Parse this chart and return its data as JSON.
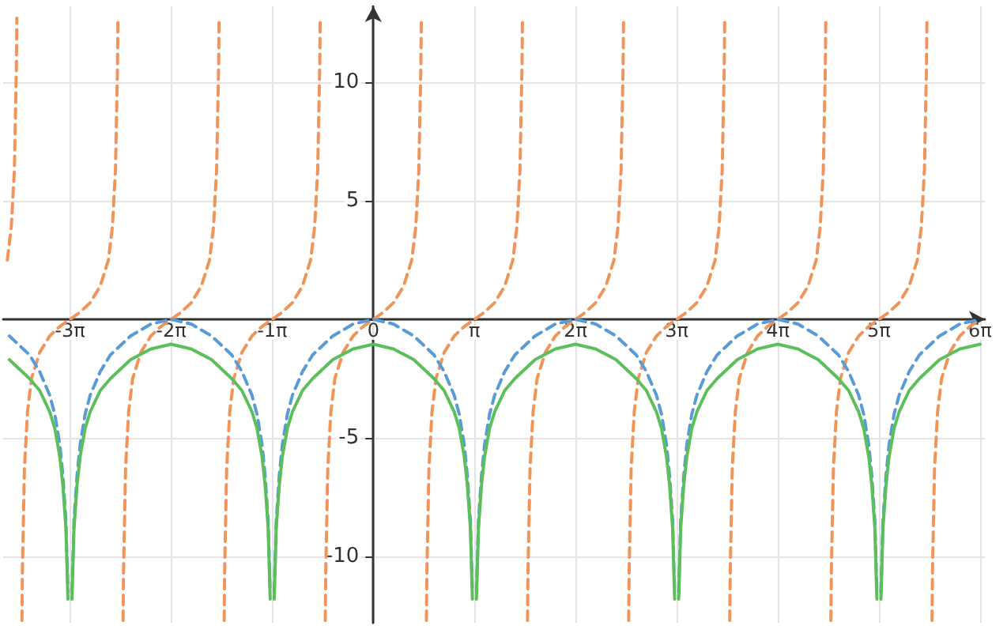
{
  "chart_data": {
    "type": "line",
    "grid": true,
    "marker": "none",
    "xlim": [
      -11.5,
      19.0
    ],
    "ylim": [
      -12.8,
      13.2
    ],
    "xticks": [
      {
        "value": -9.425,
        "label": "-3π"
      },
      {
        "value": -6.283,
        "label": "-2π"
      },
      {
        "value": -3.142,
        "label": "-1π"
      },
      {
        "value": 0,
        "label": "0"
      },
      {
        "value": 3.142,
        "label": "π"
      },
      {
        "value": 6.283,
        "label": "2π"
      },
      {
        "value": 9.425,
        "label": "3π"
      },
      {
        "value": 12.566,
        "label": "4π"
      },
      {
        "value": 15.708,
        "label": "5π"
      },
      {
        "value": 18.85,
        "label": "6π"
      }
    ],
    "yticks": [
      -10,
      -5,
      {
        "value": 0,
        "label": null
      },
      5,
      10
    ],
    "x": [
      -11.309,
      -10.681,
      -10.367,
      -10.053,
      -9.896,
      -9.739,
      -9.644,
      -9.55,
      -9.487,
      -9.425,
      -9.362,
      -9.299,
      -9.205,
      -9.11,
      -8.953,
      -8.796,
      -8.482,
      -8.168,
      -7.54,
      -6.911,
      -6.283,
      -5.655,
      -5.026,
      -4.398,
      -4.084,
      -3.77,
      -3.613,
      -3.456,
      -3.361,
      -3.267,
      -3.204,
      -3.142,
      -3.079,
      -3.016,
      -2.922,
      -2.827,
      -2.67,
      -2.513,
      -2.199,
      -1.885,
      -1.257,
      -0.628,
      0,
      0.628,
      1.257,
      1.885,
      2.199,
      2.513,
      2.67,
      2.827,
      2.922,
      3.016,
      3.079,
      3.142,
      3.204,
      3.267,
      3.361,
      3.456,
      3.613,
      3.77,
      4.084,
      4.398,
      5.026,
      5.655,
      6.283,
      6.911,
      7.54,
      8.168,
      8.482,
      8.796,
      8.953,
      9.11,
      9.205,
      9.299,
      9.362,
      9.425,
      9.487,
      9.55,
      9.644,
      9.739,
      9.896,
      10.053,
      10.367,
      10.681,
      11.309,
      11.938,
      12.566,
      13.194,
      13.823,
      14.451,
      14.765,
      15.079,
      15.236,
      15.393,
      15.488,
      15.582,
      15.645,
      15.708,
      15.771,
      15.834,
      15.928,
      16.023,
      16.18,
      16.337,
      16.651,
      16.965,
      17.593,
      18.222,
      18.85
    ],
    "series": [
      {
        "color": "#f0955a",
        "line_style": "dashed",
        "x": [
          -11.372,
          -11.247,
          -11.152,
          -11.089,
          -11.074,
          -10.995,
          -10.917,
          -10.902,
          -10.839,
          -10.744,
          -10.619,
          -10.367,
          -10.053,
          -9.739,
          -9.425,
          -9.111,
          -8.797,
          -8.483,
          -8.231,
          -8.106,
          -8.011,
          -7.948,
          -7.933,
          -7.854,
          -7.775,
          -7.76,
          -7.697,
          -7.602,
          -7.477,
          -7.225,
          -6.911,
          -6.597,
          -6.283,
          -5.969,
          -5.655,
          -5.341,
          -5.089,
          -4.964,
          -4.869,
          -4.806,
          -4.791,
          -4.712,
          -4.634,
          -4.619,
          -4.556,
          -4.461,
          -4.336,
          -4.084,
          -3.77,
          -3.456,
          -3.142,
          -2.828,
          -2.514,
          -2.2,
          -1.948,
          -1.823,
          -1.728,
          -1.665,
          -1.65,
          -1.571,
          -1.492,
          -1.477,
          -1.414,
          -1.319,
          -1.194,
          -0.942,
          -0.628,
          -0.314,
          0,
          0.314,
          0.628,
          0.942,
          1.194,
          1.319,
          1.414,
          1.477,
          1.492,
          1.571,
          1.65,
          1.665,
          1.728,
          1.823,
          1.948,
          2.2,
          2.514,
          2.828,
          3.142,
          3.456,
          3.77,
          4.084,
          4.336,
          4.461,
          4.556,
          4.619,
          4.634,
          4.712,
          4.791,
          4.806,
          4.869,
          4.964,
          5.089,
          5.341,
          5.655,
          5.969,
          6.283,
          6.597,
          6.911,
          7.225,
          7.477,
          7.602,
          7.697,
          7.76,
          7.775,
          7.854,
          7.933,
          7.948,
          8.011,
          8.106,
          8.231,
          8.483,
          8.797,
          9.111,
          9.425,
          9.739,
          10.053,
          10.367,
          10.619,
          10.744,
          10.839,
          10.902,
          10.917,
          10.996,
          11.074,
          11.089,
          11.152,
          11.247,
          11.372,
          11.624,
          11.938,
          12.252,
          12.566,
          12.88,
          13.194,
          13.508,
          13.76,
          13.885,
          13.98,
          14.043,
          14.058,
          14.137,
          14.216,
          14.231,
          14.294,
          14.389,
          14.514,
          14.766,
          15.08,
          15.394,
          15.708,
          16.022,
          16.336,
          16.65,
          16.902,
          17.027,
          17.122,
          17.185,
          17.2,
          17.279,
          17.358,
          17.373,
          17.436,
          17.531,
          17.656,
          17.908,
          18.222,
          18.536,
          18.85
        ],
        "values": [
          2.5,
          3.9,
          6.3,
          10.6,
          12.7,
          null,
          -12.7,
          -10.6,
          -6.3,
          -3.9,
          -2.5,
          -1.4,
          -0.7,
          -0.3,
          0,
          0.3,
          0.7,
          1.4,
          2.5,
          3.9,
          6.3,
          10.6,
          12.7,
          null,
          -12.7,
          -10.6,
          -6.3,
          -3.9,
          -2.5,
          -1.4,
          -0.7,
          -0.3,
          0,
          0.3,
          0.7,
          1.4,
          2.5,
          3.9,
          6.3,
          10.6,
          12.7,
          null,
          -12.7,
          -10.6,
          -6.3,
          -3.9,
          -2.5,
          -1.4,
          -0.7,
          -0.3,
          0,
          0.3,
          0.7,
          1.4,
          2.5,
          3.9,
          6.3,
          10.6,
          12.7,
          null,
          -12.7,
          -10.6,
          -6.3,
          -3.9,
          -2.5,
          -1.4,
          -0.7,
          -0.3,
          0,
          0.3,
          0.7,
          1.4,
          2.5,
          3.9,
          6.3,
          10.6,
          12.7,
          null,
          -12.7,
          -10.6,
          -6.3,
          -3.9,
          -2.5,
          -1.4,
          -0.7,
          -0.3,
          0,
          0.3,
          0.7,
          1.4,
          2.5,
          3.9,
          6.3,
          10.6,
          12.7,
          null,
          -12.7,
          -10.6,
          -6.3,
          -3.9,
          -2.5,
          -1.4,
          -0.7,
          -0.3,
          0,
          0.3,
          0.7,
          1.4,
          2.5,
          3.9,
          6.3,
          10.6,
          12.7,
          null,
          -12.7,
          -10.6,
          -6.3,
          -3.9,
          -2.5,
          -1.4,
          -0.7,
          -0.3,
          0,
          0.3,
          0.7,
          1.4,
          2.5,
          3.9,
          6.3,
          10.6,
          12.7,
          null,
          -12.7,
          -10.6,
          -6.3,
          -3.9,
          -2.5,
          -1.4,
          -0.7,
          -0.3,
          0,
          0.3,
          0.7,
          1.4,
          2.5,
          3.9,
          6.3,
          10.6,
          12.7,
          null,
          -12.7,
          -10.6,
          -6.3,
          -3.9,
          -2.5,
          -1.4,
          -0.7,
          -0.3,
          0,
          0.3,
          0.7,
          1.4,
          2.5,
          3.9,
          6.3,
          10.6,
          12.7,
          null,
          -12.7,
          -10.6,
          -6.3,
          -3.9,
          -2.5,
          -1.4,
          -0.7,
          -0.3,
          0
        ]
      },
      {
        "color": "#5b9bd5",
        "line_style": "dashed",
        "values": [
          -0.7,
          -1.5,
          -2.2,
          -3.2,
          -4.0,
          -5.3,
          -6.6,
          -8.5,
          -11.5,
          null,
          -11.5,
          -8.5,
          -6.6,
          -5.3,
          -4.0,
          -3.2,
          -2.2,
          -1.5,
          -0.7,
          -0.2,
          0,
          -0.2,
          -0.7,
          -1.5,
          -2.2,
          -3.2,
          -4.0,
          -5.3,
          -6.6,
          -8.5,
          -11.5,
          null,
          -11.5,
          -8.5,
          -6.6,
          -5.3,
          -4.0,
          -3.2,
          -2.2,
          -1.5,
          -0.7,
          -0.2,
          0,
          -0.2,
          -0.7,
          -1.5,
          -2.2,
          -3.2,
          -4.0,
          -5.3,
          -6.6,
          -8.5,
          -11.5,
          null,
          -11.5,
          -8.5,
          -6.6,
          -5.3,
          -4.0,
          -3.2,
          -2.2,
          -1.5,
          -0.7,
          -0.2,
          0,
          -0.2,
          -0.7,
          -1.5,
          -2.2,
          -3.2,
          -4.0,
          -5.3,
          -6.6,
          -8.5,
          -11.5,
          null,
          -11.5,
          -8.5,
          -6.6,
          -5.3,
          -4.0,
          -3.2,
          -2.2,
          -1.5,
          -0.7,
          -0.2,
          0,
          -0.2,
          -0.7,
          -1.5,
          -2.2,
          -3.2,
          -4.0,
          -5.3,
          -6.6,
          -8.5,
          -11.5,
          null,
          -11.5,
          -8.5,
          -6.6,
          -5.3,
          -4.0,
          -3.2,
          -2.2,
          -1.5,
          -0.7,
          -0.2,
          0
        ]
      },
      {
        "color": "#5cbf5c",
        "line_style": "solid",
        "values": [
          -1.7,
          -2.5,
          -3.0,
          -3.9,
          -4.6,
          -5.8,
          -7.0,
          -8.8,
          -11.8,
          null,
          -11.8,
          -8.8,
          -7.0,
          -5.8,
          -4.6,
          -3.9,
          -3.0,
          -2.5,
          -1.7,
          -1.25,
          -1.05,
          -1.25,
          -1.7,
          -2.5,
          -3.0,
          -3.9,
          -4.6,
          -5.8,
          -7.0,
          -8.8,
          -11.8,
          null,
          -11.8,
          -8.8,
          -7.0,
          -5.8,
          -4.6,
          -3.9,
          -3.0,
          -2.5,
          -1.7,
          -1.25,
          -1.05,
          -1.25,
          -1.7,
          -2.5,
          -3.0,
          -3.9,
          -4.6,
          -5.8,
          -7.0,
          -8.8,
          -11.8,
          null,
          -11.8,
          -8.8,
          -7.0,
          -5.8,
          -4.6,
          -3.9,
          -3.0,
          -2.5,
          -1.7,
          -1.25,
          -1.05,
          -1.25,
          -1.7,
          -2.5,
          -3.0,
          -3.9,
          -4.6,
          -5.8,
          -7.0,
          -8.8,
          -11.8,
          null,
          -11.8,
          -8.8,
          -7.0,
          -5.8,
          -4.6,
          -3.9,
          -3.0,
          -2.5,
          -1.7,
          -1.25,
          -1.05,
          -1.25,
          -1.7,
          -2.5,
          -3.0,
          -3.9,
          -4.6,
          -5.8,
          -7.0,
          -8.8,
          -11.8,
          null,
          -11.8,
          -8.8,
          -7.0,
          -5.8,
          -4.6,
          -3.9,
          -3.0,
          -2.5,
          -1.7,
          -1.25,
          -1.05
        ]
      }
    ]
  }
}
